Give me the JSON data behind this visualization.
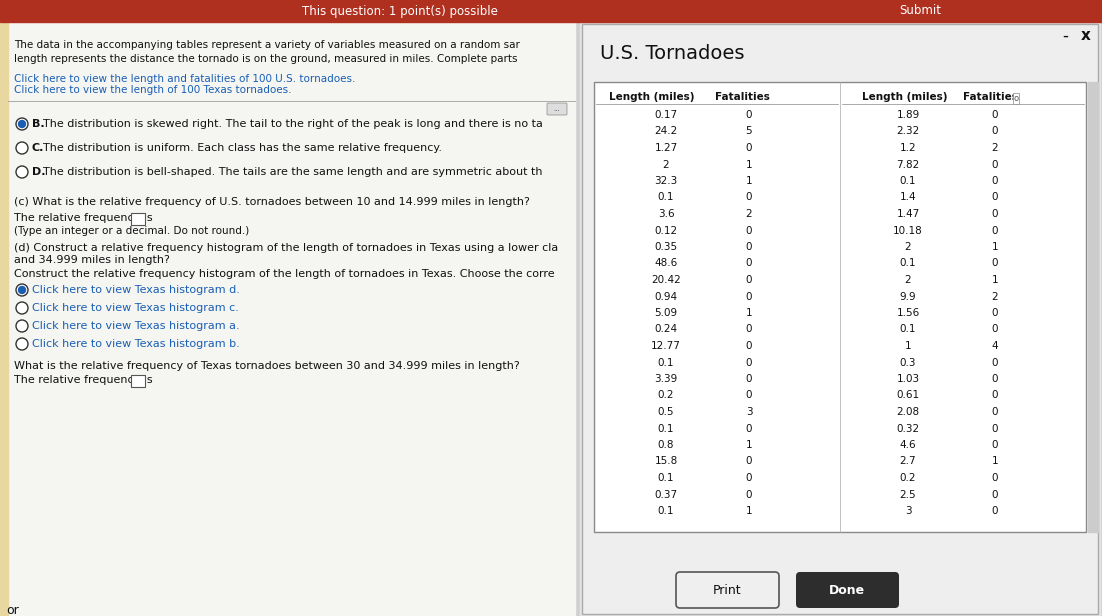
{
  "title": "U.S. Tornadoes",
  "header_bar_text": "This question: 1 point(s) possible",
  "left_text_lines": [
    "The data in the accompanying tables represent a variety of variables measured on a random sar",
    "length represents the distance the tornado is on the ground, measured in miles. Complete parts"
  ],
  "link1": "Click here to view the length and fatalities of 100 U.S. tornadoes.",
  "link2": "Click here to view the length of 100 Texas tornadoes.",
  "options": [
    {
      "letter": "B.",
      "text": "The distribution is skewed right. The tail to the right of the peak is long and there is no ta",
      "selected": true
    },
    {
      "letter": "C.",
      "text": "The distribution is uniform. Each class has the same relative frequency.",
      "selected": false
    },
    {
      "letter": "D.",
      "text": "The distribution is bell-shaped. The tails are the same length and are symmetric about th",
      "selected": false
    }
  ],
  "part_c_q": "(c) What is the relative frequency of U.S. tornadoes between 10 and 14.999 miles in length?",
  "part_c_ans": "The relative frequency is",
  "part_c_note": "(Type an integer or a decimal. Do not round.)",
  "part_d_q": "(d) Construct a relative frequency histogram of the length of tornadoes in Texas using a lower cla",
  "part_d_q2": "and 34.999 miles in length?",
  "part_d_inst": "Construct the relative frequency histogram of the length of tornadoes in Texas. Choose the corre",
  "hist_links": [
    {
      "text": "Click here to view Texas histogram d.",
      "selected": true
    },
    {
      "text": "Click here to view Texas histogram c.",
      "selected": false
    },
    {
      "text": "Click here to view Texas histogram a.",
      "selected": false
    },
    {
      "text": "Click here to view Texas histogram b.",
      "selected": false
    }
  ],
  "part_d_q3": "What is the relative frequency of Texas tornadoes between 30 and 34.999 miles in length?",
  "freq_label": "The relative frequency is",
  "bottom_left": "or",
  "col1_lengths": [
    0.17,
    24.2,
    1.27,
    2,
    32.3,
    0.1,
    3.6,
    0.12,
    0.35,
    48.6,
    20.42,
    0.94,
    5.09,
    0.24,
    12.77,
    0.1,
    3.39,
    0.2,
    0.5,
    0.1,
    0.8,
    15.8,
    0.1,
    0.37,
    0.1
  ],
  "col1_fatalities": [
    0,
    5,
    0,
    1,
    1,
    0,
    2,
    0,
    0,
    0,
    0,
    0,
    1,
    0,
    0,
    0,
    0,
    0,
    3,
    0,
    1,
    0,
    0,
    0,
    1
  ],
  "col2_lengths": [
    1.89,
    2.32,
    1.2,
    7.82,
    0.1,
    1.4,
    1.47,
    10.18,
    2,
    0.1,
    2,
    9.9,
    1.56,
    0.1,
    1,
    0.3,
    1.03,
    0.61,
    2.08,
    0.32,
    4.6,
    2.7,
    0.2,
    2.5,
    3
  ],
  "col2_fatalities": [
    0,
    0,
    2,
    0,
    0,
    0,
    0,
    0,
    1,
    0,
    1,
    2,
    0,
    0,
    4,
    0,
    0,
    0,
    0,
    0,
    0,
    1,
    0,
    0,
    0
  ]
}
